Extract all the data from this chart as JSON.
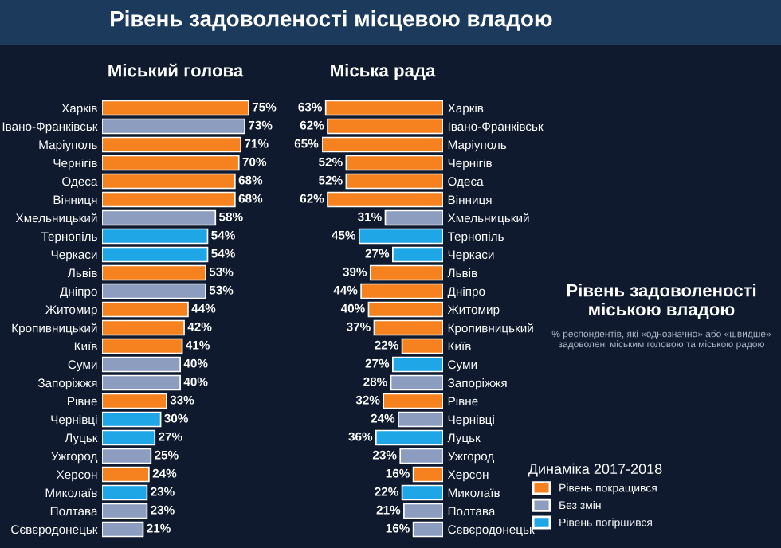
{
  "chart_data": [
    {
      "type": "bar",
      "orientation": "horizontal",
      "title": "Міський голова",
      "categories": [
        "Харків",
        "Івано-Франківськ",
        "Маріуполь",
        "Чернігів",
        "Одеса",
        "Вінниця",
        "Хмельницький",
        "Тернопіль",
        "Черкаси",
        "Львів",
        "Дніпро",
        "Житомир",
        "Кропивницький",
        "Київ",
        "Суми",
        "Запоріжжя",
        "Рівне",
        "Чернівці",
        "Луцьк",
        "Ужгород",
        "Херсон",
        "Миколаїв",
        "Полтава",
        "Сєвєродонецьк"
      ],
      "series": [
        {
          "color": "#f5821f",
          "values": [
            75,
            null,
            71,
            70,
            68,
            68,
            null,
            null,
            null,
            53,
            null,
            44,
            42,
            41,
            null,
            null,
            33,
            null,
            null,
            null,
            24,
            null,
            null,
            null
          ],
          "value_labels": [
            "75%",
            null,
            "71%",
            "70%",
            "68%",
            "68%",
            null,
            null,
            null,
            "53%",
            null,
            "44%",
            "42%",
            "41%",
            null,
            null,
            "33%",
            null,
            null,
            null,
            "24%",
            null,
            null,
            null
          ]
        },
        {
          "color": "#8c9dbf",
          "values": [
            null,
            73,
            null,
            null,
            null,
            null,
            58,
            null,
            null,
            null,
            53,
            null,
            null,
            null,
            40,
            40,
            null,
            null,
            null,
            25,
            null,
            null,
            23,
            21
          ],
          "value_labels": [
            null,
            "73%",
            null,
            null,
            null,
            null,
            "58%",
            null,
            null,
            null,
            "53%",
            null,
            null,
            null,
            "40%",
            "40%",
            null,
            null,
            null,
            "25%",
            null,
            null,
            "23%",
            "21%"
          ]
        },
        {
          "color": "#1ea6e6",
          "values": [
            null,
            null,
            null,
            null,
            null,
            null,
            null,
            54,
            54,
            null,
            null,
            null,
            null,
            null,
            null,
            null,
            null,
            30,
            27,
            null,
            null,
            23,
            null,
            null
          ],
          "value_labels": [
            null,
            null,
            null,
            null,
            null,
            null,
            null,
            "54%",
            "54%",
            null,
            null,
            null,
            null,
            null,
            null,
            null,
            null,
            "30%",
            "27%",
            null,
            null,
            "23%",
            null,
            null
          ]
        }
      ]
    },
    {
      "type": "bar",
      "orientation": "horizontal",
      "title": "Міська рада",
      "legend": "right",
      "legend_title": "Динаміка 2017-2018",
      "categories": [
        "Харків",
        "Івано-Франківськ",
        "Маріуполь",
        "Чернігів",
        "Одеса",
        "Вінниця",
        "Хмельницький",
        "Тернопіль",
        "Черкаси",
        "Львів",
        "Дніпро",
        "Житомир",
        "Кропивницький",
        "Київ",
        "Суми",
        "Запоріжжя",
        "Рівне",
        "Чернівці",
        "Луцьк",
        "Ужгород",
        "Херсон",
        "Миколаїв",
        "Полтава",
        "Сєвєродонецьк"
      ],
      "series": [
        {
          "name": "Рівень покращився",
          "color": "#f5821f",
          "values": [
            63,
            62,
            65,
            52,
            52,
            62,
            null,
            null,
            null,
            39,
            44,
            40,
            37,
            22,
            null,
            null,
            32,
            null,
            null,
            null,
            16,
            null,
            null,
            null
          ],
          "value_labels": [
            "63%",
            "62%",
            "65%",
            "52%",
            "52%",
            "62%",
            null,
            null,
            null,
            "39%",
            "44%",
            "40%",
            "37%",
            "22%",
            null,
            null,
            "32%",
            null,
            null,
            null,
            "16%",
            null,
            null,
            null
          ]
        },
        {
          "name": "Без змін",
          "color": "#8c9dbf",
          "values": [
            null,
            null,
            null,
            null,
            null,
            null,
            31,
            null,
            null,
            null,
            null,
            null,
            null,
            null,
            null,
            28,
            null,
            24,
            null,
            23,
            null,
            null,
            21,
            16
          ],
          "value_labels": [
            null,
            null,
            null,
            null,
            null,
            null,
            "31%",
            null,
            null,
            null,
            null,
            null,
            null,
            null,
            null,
            "28%",
            null,
            "24%",
            null,
            "23%",
            null,
            null,
            "21%",
            "16%"
          ]
        },
        {
          "name": "Рівень погіршився",
          "color": "#1ea6e6",
          "values": [
            null,
            null,
            null,
            null,
            null,
            null,
            null,
            45,
            27,
            null,
            null,
            null,
            null,
            null,
            27,
            null,
            null,
            null,
            36,
            null,
            null,
            22,
            null,
            null
          ],
          "value_labels": [
            null,
            null,
            null,
            null,
            null,
            null,
            null,
            "45%",
            "27%",
            null,
            null,
            null,
            null,
            null,
            "27%",
            null,
            null,
            null,
            "36%",
            null,
            null,
            "22%",
            null,
            null
          ]
        }
      ]
    },
    {
      "type": "other",
      "title": "Рівень задоволеності міською владою",
      "subtitle": "% респондентів, які «однозначно» або «швидше» задоволені міським головою та міською радою",
      "annotations": [
        "Рівень задоволеності місцевою владою"
      ]
    }
  ]
}
